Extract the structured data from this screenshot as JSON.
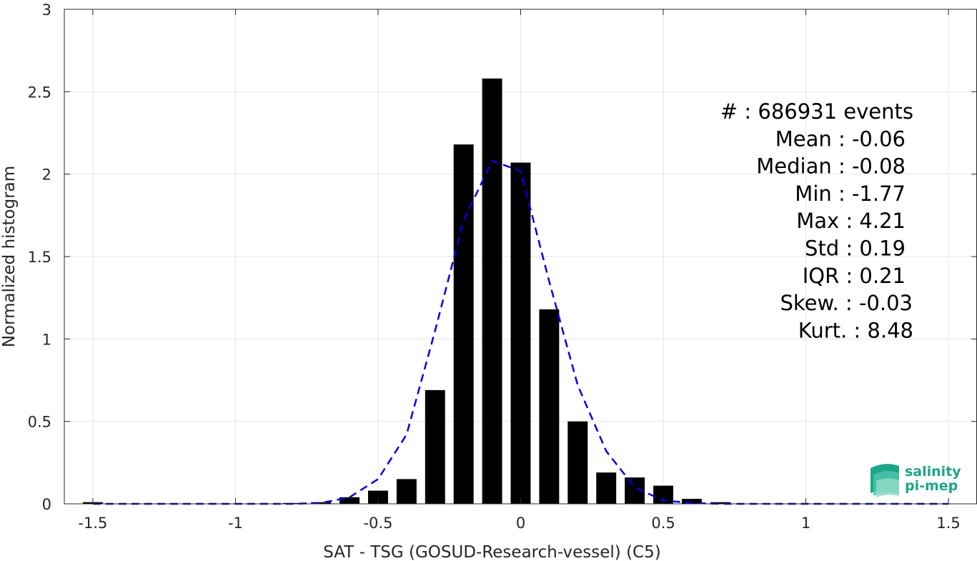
{
  "chart_data": {
    "type": "bar",
    "xlabel": "SAT - TSG (GOSUD-Research-vessel) (C5)",
    "ylabel": "Normalized histogram",
    "xlim": [
      -1.6,
      1.6
    ],
    "ylim": [
      0,
      3
    ],
    "xticks": [
      -1.5,
      -1,
      -0.5,
      0,
      0.5,
      1,
      1.5
    ],
    "xtick_labels": [
      "-1.5",
      "-1",
      "-0.5",
      "0",
      "0.5",
      "1",
      "1.5"
    ],
    "yticks": [
      0,
      0.5,
      1,
      1.5,
      2,
      2.5,
      3
    ],
    "ytick_labels": [
      "0",
      "0.5",
      "1",
      "1.5",
      "2",
      "2.5",
      "3"
    ],
    "grid": true,
    "bar_width": 0.07,
    "bar_color": "#000000",
    "bars": [
      {
        "x": -1.5,
        "value": 0.01
      },
      {
        "x": -1.4,
        "value": 0.0
      },
      {
        "x": -1.3,
        "value": 0.0
      },
      {
        "x": -1.2,
        "value": 0.0
      },
      {
        "x": -1.1,
        "value": 0.0
      },
      {
        "x": -1.0,
        "value": 0.0
      },
      {
        "x": -0.9,
        "value": 0.0
      },
      {
        "x": -0.8,
        "value": 0.005
      },
      {
        "x": -0.7,
        "value": 0.01
      },
      {
        "x": -0.6,
        "value": 0.04
      },
      {
        "x": -0.5,
        "value": 0.08
      },
      {
        "x": -0.4,
        "value": 0.15
      },
      {
        "x": -0.3,
        "value": 0.69
      },
      {
        "x": -0.2,
        "value": 2.18
      },
      {
        "x": -0.1,
        "value": 2.58
      },
      {
        "x": 0.0,
        "value": 2.07
      },
      {
        "x": 0.1,
        "value": 1.18
      },
      {
        "x": 0.2,
        "value": 0.5
      },
      {
        "x": 0.3,
        "value": 0.19
      },
      {
        "x": 0.4,
        "value": 0.16
      },
      {
        "x": 0.5,
        "value": 0.11
      },
      {
        "x": 0.6,
        "value": 0.03
      },
      {
        "x": 0.7,
        "value": 0.01
      }
    ],
    "fit_line": {
      "style": "dashed",
      "color": "#0000ee",
      "x": [
        -1.5,
        -1.4,
        -1.3,
        -1.2,
        -1.1,
        -1.0,
        -0.9,
        -0.8,
        -0.7,
        -0.6,
        -0.5,
        -0.4,
        -0.3,
        -0.2,
        -0.1,
        0.0,
        0.1,
        0.2,
        0.3,
        0.4,
        0.5,
        0.6,
        0.7,
        0.8,
        0.9,
        1.0,
        1.1,
        1.2,
        1.3,
        1.4,
        1.5
      ],
      "y": [
        0,
        0,
        0,
        0,
        0,
        0,
        0,
        0,
        0.005,
        0.04,
        0.15,
        0.42,
        1.05,
        1.72,
        2.08,
        2.02,
        1.35,
        0.72,
        0.32,
        0.1,
        0.02,
        0.005,
        0,
        0,
        0,
        0,
        0,
        0,
        0,
        0,
        0
      ]
    },
    "annotations": [
      "#  : 686931 events",
      "Mean : -0.06",
      "Median : -0.08",
      "Min : -1.77",
      "Max : 4.21",
      "Std : 0.19",
      "IQR : 0.21",
      "Skew. : -0.03",
      "Kurt. : 8.48"
    ]
  },
  "logo": {
    "line1": "salinity",
    "line2": "pi-mep",
    "color": "#1aa68a"
  }
}
